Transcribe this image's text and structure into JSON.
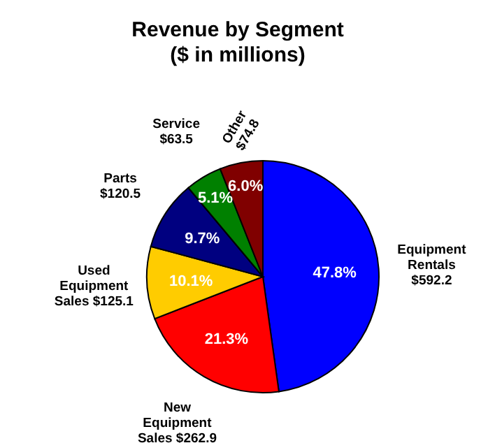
{
  "chart_data": {
    "type": "pie",
    "title": "Revenue by Segment\n($ in millions)",
    "categories": [
      "Equipment\nRentals\n$592.2",
      "New\nEquipment\nSales $262.9",
      "Used\nEquipment\nSales $125.1",
      "Parts\n$120.5",
      "Service\n$63.5",
      "Other\n$74.8"
    ],
    "values": [
      47.8,
      21.3,
      10.1,
      9.7,
      5.1,
      6.0
    ],
    "colors": [
      "#0000ff",
      "#ff0000",
      "#ffcc00",
      "#000080",
      "#008000",
      "#800000"
    ],
    "value_labels": [
      "47.8%",
      "21.3%",
      "10.1%",
      "9.7%",
      "5.1%",
      "6.0%"
    ]
  }
}
